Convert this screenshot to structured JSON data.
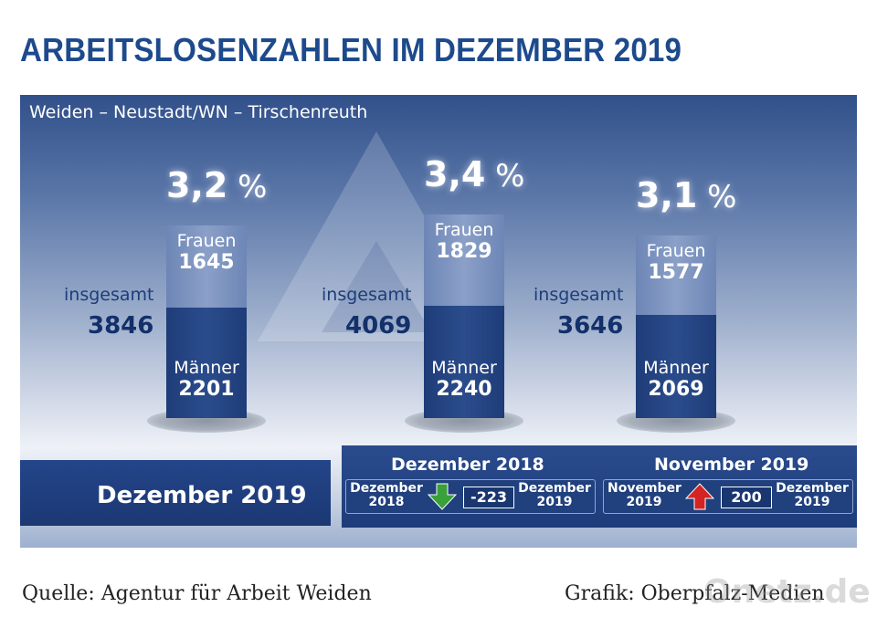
{
  "title": "ARBEITSLOSENZAHLEN IM DEZEMBER 2019",
  "subtitle": "Weiden – Neustadt/WN – Tirschenreuth",
  "labels": {
    "frauen": "Frauen",
    "maenner": "Männer",
    "insgesamt": "insgesamt",
    "unit": "%"
  },
  "chart_data": {
    "type": "bar",
    "stacked": true,
    "categories": [
      "Dezember 2019",
      "Dezember 2018",
      "November 2019"
    ],
    "series": [
      {
        "name": "Männer",
        "values": [
          2201,
          2240,
          2069
        ]
      },
      {
        "name": "Frauen",
        "values": [
          1645,
          1829,
          1577
        ]
      }
    ],
    "totals": [
      3846,
      4069,
      3646
    ],
    "rates": [
      "3,2",
      "3,4",
      "3,1"
    ],
    "bars": [
      {
        "rate": "3,2",
        "frauen": "1645",
        "maenner": "2201",
        "total": "3846"
      },
      {
        "rate": "3,4",
        "frauen": "1829",
        "maenner": "2240",
        "total": "4069"
      },
      {
        "rate": "3,1",
        "frauen": "1577",
        "maenner": "2069",
        "total": "3646"
      }
    ]
  },
  "current_period": "Dezember 2019",
  "comparisons": [
    {
      "title": "Dezember 2018",
      "from_line1": "Dezember",
      "from_line2": "2018",
      "to_line1": "Dezember",
      "to_line2": "2019",
      "change": "-223",
      "direction": "down",
      "color": "#3aa03a"
    },
    {
      "title": "November 2019",
      "from_line1": "November",
      "from_line2": "2019",
      "to_line1": "Dezember",
      "to_line2": "2019",
      "change": "200",
      "direction": "up",
      "color": "#d42323"
    }
  ],
  "footer": {
    "source": "Quelle: Agentur für Arbeit Weiden",
    "credit": "Grafik: Oberpfalz-Medien"
  },
  "watermark": "Onetz.de"
}
